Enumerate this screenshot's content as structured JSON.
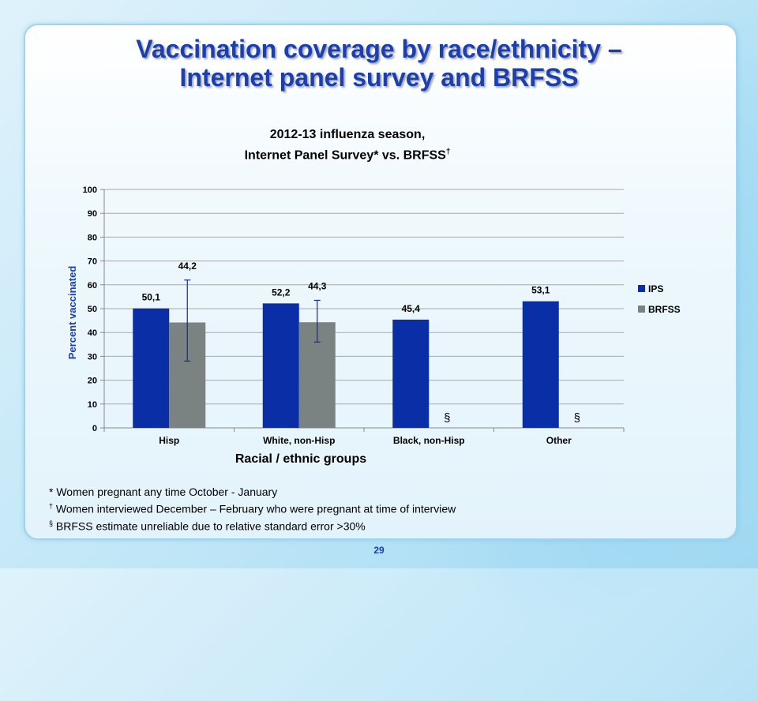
{
  "slide": {
    "title_line1": "Vaccination coverage by race/ethnicity –",
    "title_line2": "Internet panel survey and BRFSS",
    "page_number": "29"
  },
  "chart_data": {
    "type": "bar",
    "title_line1": "2012-13 influenza season,",
    "title_line2": "Internet Panel Survey* vs. BRFSS",
    "title_mark": "†",
    "xlabel": "Racial / ethnic groups",
    "ylabel": "Percent vaccinated",
    "ylim": [
      0,
      100
    ],
    "yticks": [
      0,
      10,
      20,
      30,
      40,
      50,
      60,
      70,
      80,
      90,
      100
    ],
    "grid": true,
    "legend_position": "right",
    "categories": [
      "Hisp",
      "White, non-Hisp",
      "Black, non-Hisp",
      "Other"
    ],
    "series": [
      {
        "name": "IPS",
        "color": "#0a2ea6",
        "values": [
          50.1,
          52.2,
          45.4,
          53.1
        ],
        "labels": [
          "50,1",
          "52,2",
          "45,4",
          "53,1"
        ],
        "error_low": [
          null,
          null,
          null,
          null
        ],
        "error_high": [
          null,
          null,
          null,
          null
        ]
      },
      {
        "name": "BRFSS",
        "color": "#7a8282",
        "values": [
          44.2,
          44.3,
          null,
          null
        ],
        "labels": [
          "44,2",
          "44,3",
          "§",
          "§"
        ],
        "error_low": [
          28.0,
          36.0,
          null,
          null
        ],
        "error_high": [
          62.0,
          53.5,
          null,
          null
        ]
      }
    ]
  },
  "footnotes": [
    {
      "mark": "*",
      "text": " Women pregnant any time October - January"
    },
    {
      "mark": "†",
      "text": " Women interviewed December – February who were pregnant at time of interview"
    },
    {
      "mark": "§",
      "text": " BRFSS estimate unreliable due to relative standard error >30%"
    }
  ]
}
